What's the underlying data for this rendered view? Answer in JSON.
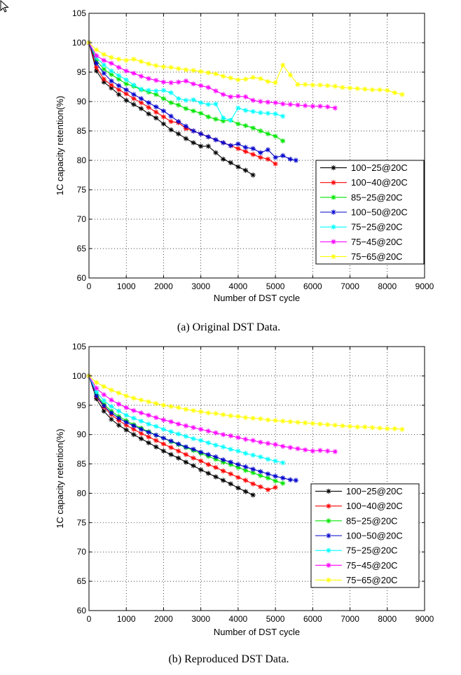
{
  "chart_data": [
    {
      "type": "line",
      "caption": "(a) Original DST Data.",
      "xlabel": "Number of DST cycle",
      "ylabel": "1C capacity retention(%)",
      "xlim": [
        0,
        9000
      ],
      "ylim": [
        60,
        105
      ],
      "xticks": [
        0,
        1000,
        2000,
        3000,
        4000,
        5000,
        6000,
        7000,
        8000,
        9000
      ],
      "yticks": [
        60,
        65,
        70,
        75,
        80,
        85,
        90,
        95,
        100,
        105
      ],
      "grid": true,
      "legend_position": "right-middle",
      "series": [
        {
          "name": "100−25@20C",
          "color": "#000000",
          "x": [
            0,
            200,
            400,
            600,
            800,
            1000,
            1200,
            1400,
            1600,
            1800,
            2000,
            2200,
            2400,
            2600,
            2800,
            3000,
            3200,
            3400,
            3600,
            3800,
            4000,
            4200,
            4400
          ],
          "y": [
            100,
            95.2,
            93.3,
            92.3,
            91.2,
            90.2,
            89.5,
            88.8,
            87.9,
            87.2,
            86.2,
            85.2,
            84.5,
            83.7,
            83.0,
            82.4,
            82.4,
            81.3,
            80.2,
            79.6,
            78.9,
            78.3,
            77.5
          ]
        },
        {
          "name": "100−40@20C",
          "color": "#ff0000",
          "x": [
            0,
            200,
            400,
            600,
            800,
            1000,
            1200,
            1400,
            1600,
            1800,
            2000,
            2200,
            2400,
            2600,
            2800,
            3000,
            3200,
            3400,
            3600,
            3800,
            4000,
            4200,
            4400,
            4600,
            4800,
            5000
          ],
          "y": [
            100,
            95.8,
            93.8,
            92.8,
            92.0,
            91.3,
            90.5,
            89.8,
            89.0,
            88.2,
            87.4,
            86.6,
            86.4,
            85.4,
            85.0,
            84.5,
            84.0,
            83.5,
            83.0,
            82.5,
            82.0,
            81.5,
            81.0,
            80.5,
            80.2,
            79.4
          ]
        },
        {
          "name": "85−25@20C",
          "color": "#00e600",
          "x": [
            0,
            200,
            400,
            600,
            800,
            1000,
            1200,
            1400,
            1600,
            1800,
            2000,
            2200,
            2400,
            2600,
            2800,
            3000,
            3200,
            3400,
            3600,
            3800,
            4000,
            4200,
            4400,
            4600,
            4800,
            5000,
            5200
          ],
          "y": [
            100,
            97.0,
            95.5,
            94.6,
            93.8,
            93.0,
            92.6,
            92.0,
            91.6,
            91.2,
            90.5,
            89.8,
            89.4,
            88.8,
            88.4,
            88.0,
            87.4,
            87.0,
            86.7,
            86.8,
            86.2,
            85.9,
            85.5,
            85.0,
            84.5,
            84.1,
            83.3
          ]
        },
        {
          "name": "100−50@20C",
          "color": "#0000cc",
          "x": [
            0,
            200,
            400,
            600,
            800,
            1000,
            1200,
            1400,
            1600,
            1800,
            2000,
            2200,
            2400,
            2600,
            2800,
            3000,
            3200,
            3400,
            3600,
            3800,
            4000,
            4200,
            4400,
            4600,
            4800,
            5000,
            5200,
            5400,
            5550
          ],
          "y": [
            100,
            96.5,
            94.8,
            93.5,
            92.7,
            92.0,
            91.2,
            90.5,
            89.8,
            89.1,
            88.4,
            87.5,
            86.6,
            85.8,
            85.0,
            84.5,
            84.0,
            83.5,
            83.0,
            82.5,
            82.8,
            82.2,
            82.0,
            81.3,
            81.8,
            80.5,
            80.8,
            80.2,
            80.0
          ]
        },
        {
          "name": "75−25@20C",
          "color": "#00ffff",
          "x": [
            0,
            200,
            400,
            600,
            800,
            1000,
            1200,
            1400,
            1600,
            1800,
            2000,
            2200,
            2400,
            2600,
            2800,
            3000,
            3200,
            3400,
            3600,
            3800,
            4000,
            4200,
            4400,
            4600,
            4800,
            5000,
            5200
          ],
          "y": [
            100,
            97.5,
            96.2,
            95.2,
            94.4,
            93.7,
            92.8,
            92.1,
            91.9,
            91.8,
            91.9,
            91.5,
            90.5,
            90.2,
            90.3,
            89.8,
            89.5,
            89.6,
            87.2,
            86.8,
            88.9,
            88.5,
            88.3,
            88.1,
            88.0,
            87.9,
            87.5
          ]
        },
        {
          "name": "75−45@20C",
          "color": "#ff00ff",
          "x": [
            0,
            200,
            400,
            600,
            800,
            1000,
            1200,
            1400,
            1600,
            1800,
            2000,
            2200,
            2400,
            2600,
            2800,
            3000,
            3200,
            3400,
            3600,
            3800,
            4000,
            4200,
            4400,
            4600,
            4800,
            5000,
            5200,
            5400,
            5600,
            5800,
            6000,
            6200,
            6400,
            6600
          ],
          "y": [
            100,
            97.8,
            97.0,
            96.5,
            95.8,
            95.2,
            94.8,
            94.3,
            93.9,
            93.6,
            93.3,
            93.2,
            93.3,
            93.5,
            93.0,
            92.7,
            92.4,
            91.8,
            91.2,
            90.8,
            90.9,
            90.8,
            90.2,
            90.0,
            89.9,
            89.8,
            89.6,
            89.5,
            89.4,
            89.3,
            89.2,
            89.2,
            89.1,
            88.9
          ]
        },
        {
          "name": "75−65@20C",
          "color": "#ffff00",
          "x": [
            0,
            200,
            400,
            600,
            800,
            1000,
            1200,
            1400,
            1600,
            1800,
            2000,
            2200,
            2400,
            2600,
            2800,
            3000,
            3200,
            3400,
            3600,
            3800,
            4000,
            4200,
            4400,
            4600,
            4800,
            5000,
            5200,
            5400,
            5600,
            5800,
            6000,
            6200,
            6400,
            6600,
            6800,
            7000,
            7200,
            7400,
            7600,
            7800,
            8000,
            8200,
            8400
          ],
          "y": [
            100,
            98.8,
            98.0,
            97.5,
            97.2,
            97.0,
            97.2,
            96.8,
            96.4,
            96.1,
            95.9,
            95.8,
            95.6,
            95.4,
            95.3,
            95.1,
            94.9,
            94.7,
            94.3,
            94.0,
            93.7,
            93.8,
            94.1,
            93.9,
            93.4,
            93.2,
            96.2,
            94.5,
            92.9,
            92.9,
            92.8,
            92.8,
            92.7,
            92.6,
            92.4,
            92.3,
            92.2,
            92.1,
            92.0,
            92.0,
            91.9,
            91.5,
            91.2
          ]
        }
      ]
    },
    {
      "type": "line",
      "caption": "(b) Reproduced DST Data.",
      "xlabel": "Number of DST cycle",
      "ylabel": "1C capacity retention(%)",
      "xlim": [
        0,
        9000
      ],
      "ylim": [
        60,
        105
      ],
      "xticks": [
        0,
        1000,
        2000,
        3000,
        4000,
        5000,
        6000,
        7000,
        8000,
        9000
      ],
      "yticks": [
        60,
        65,
        70,
        75,
        80,
        85,
        90,
        95,
        100,
        105
      ],
      "grid": true,
      "legend_position": "bottom-right",
      "series": [
        {
          "name": "100−25@20C",
          "color": "#000000",
          "x": [
            0,
            200,
            400,
            600,
            800,
            1000,
            1200,
            1400,
            1600,
            1800,
            2000,
            2200,
            2400,
            2600,
            2800,
            3000,
            3200,
            3400,
            3600,
            3800,
            4000,
            4200,
            4400
          ],
          "y": [
            100,
            96.1,
            94.0,
            92.6,
            91.6,
            90.8,
            90.0,
            89.3,
            88.6,
            87.9,
            87.2,
            86.6,
            86.0,
            85.3,
            84.7,
            84.0,
            83.4,
            82.8,
            82.2,
            81.6,
            80.9,
            80.3,
            79.7
          ]
        },
        {
          "name": "100−40@20C",
          "color": "#ff0000",
          "x": [
            0,
            200,
            400,
            600,
            800,
            1000,
            1200,
            1400,
            1600,
            1800,
            2000,
            2200,
            2400,
            2600,
            2800,
            3000,
            3200,
            3400,
            3600,
            3800,
            4000,
            4200,
            4400,
            4600,
            4800,
            5000
          ],
          "y": [
            100,
            96.5,
            94.7,
            93.4,
            92.4,
            91.6,
            90.9,
            90.2,
            89.6,
            89.0,
            88.4,
            87.8,
            87.2,
            86.6,
            86.0,
            85.5,
            84.9,
            84.4,
            83.8,
            83.3,
            82.7,
            82.2,
            81.6,
            81.1,
            80.6,
            81.0
          ]
        },
        {
          "name": "85−25@20C",
          "color": "#00e600",
          "x": [
            0,
            200,
            400,
            600,
            800,
            1000,
            1200,
            1400,
            1600,
            1800,
            2000,
            2200,
            2400,
            2600,
            2800,
            3000,
            3200,
            3400,
            3600,
            3800,
            4000,
            4200,
            4400,
            4600,
            4800,
            5000,
            5200
          ],
          "y": [
            100,
            96.9,
            95.2,
            94.0,
            93.1,
            92.4,
            91.7,
            91.1,
            90.5,
            89.9,
            89.4,
            88.8,
            88.3,
            87.8,
            87.3,
            86.8,
            86.3,
            85.8,
            85.3,
            84.9,
            84.4,
            83.9,
            83.5,
            83.0,
            82.6,
            82.1,
            81.7
          ]
        },
        {
          "name": "100−50@20C",
          "color": "#0000cc",
          "x": [
            0,
            200,
            400,
            600,
            800,
            1000,
            1200,
            1400,
            1600,
            1800,
            2000,
            2200,
            2400,
            2600,
            2800,
            3000,
            3200,
            3400,
            3600,
            3800,
            4000,
            4200,
            4400,
            4600,
            4800,
            5000,
            5200,
            5400,
            5550
          ],
          "y": [
            100,
            96.6,
            94.9,
            93.7,
            92.8,
            92.1,
            91.5,
            90.9,
            90.4,
            89.9,
            89.4,
            88.9,
            88.4,
            87.9,
            87.5,
            87.0,
            86.6,
            86.2,
            85.7,
            85.3,
            84.9,
            84.5,
            84.1,
            83.7,
            83.3,
            82.9,
            82.6,
            82.3,
            82.2
          ]
        },
        {
          "name": "75−25@20C",
          "color": "#00ffff",
          "x": [
            0,
            200,
            400,
            600,
            800,
            1000,
            1200,
            1400,
            1600,
            1800,
            2000,
            2200,
            2400,
            2600,
            2800,
            3000,
            3200,
            3400,
            3600,
            3800,
            4000,
            4200,
            4400,
            4600,
            4800,
            5000,
            5200
          ],
          "y": [
            100,
            97.3,
            95.8,
            94.8,
            94.0,
            93.3,
            92.8,
            92.3,
            91.8,
            91.4,
            90.9,
            90.5,
            90.1,
            89.7,
            89.3,
            89.0,
            88.6,
            88.2,
            87.9,
            87.5,
            87.2,
            86.8,
            86.5,
            86.2,
            85.8,
            85.5,
            85.2
          ]
        },
        {
          "name": "75−45@20C",
          "color": "#ff00ff",
          "x": [
            0,
            200,
            400,
            600,
            800,
            1000,
            1200,
            1400,
            1600,
            1800,
            2000,
            2200,
            2400,
            2600,
            2800,
            3000,
            3200,
            3400,
            3600,
            3800,
            4000,
            4200,
            4400,
            4600,
            4800,
            5000,
            5200,
            5400,
            5600,
            5800,
            6000,
            6200,
            6400,
            6600
          ],
          "y": [
            100,
            97.9,
            96.8,
            95.9,
            95.2,
            94.6,
            94.1,
            93.7,
            93.3,
            92.9,
            92.5,
            92.2,
            91.8,
            91.5,
            91.2,
            90.9,
            90.6,
            90.3,
            90.0,
            89.8,
            89.5,
            89.2,
            89.0,
            88.7,
            88.5,
            88.3,
            88.0,
            87.8,
            87.6,
            87.4,
            87.2,
            87.3,
            87.2,
            87.1
          ]
        },
        {
          "name": "75−65@20C",
          "color": "#ffff00",
          "x": [
            0,
            200,
            400,
            600,
            800,
            1000,
            1200,
            1400,
            1600,
            1800,
            2000,
            2200,
            2400,
            2600,
            2800,
            3000,
            3200,
            3400,
            3600,
            3800,
            4000,
            4200,
            4400,
            4600,
            4800,
            5000,
            5200,
            5400,
            5600,
            5800,
            6000,
            6200,
            6400,
            6600,
            6800,
            7000,
            7200,
            7400,
            7600,
            7800,
            8000,
            8200,
            8400
          ],
          "y": [
            100,
            98.9,
            98.2,
            97.6,
            97.1,
            96.6,
            96.2,
            95.9,
            95.6,
            95.3,
            95.0,
            94.8,
            94.6,
            94.3,
            94.1,
            93.9,
            93.7,
            93.6,
            93.4,
            93.2,
            93.1,
            92.9,
            92.8,
            92.7,
            92.5,
            92.4,
            92.3,
            92.2,
            92.1,
            92.0,
            91.9,
            91.8,
            91.7,
            91.6,
            91.5,
            91.4,
            91.3,
            91.3,
            91.2,
            91.1,
            91.0,
            91.0,
            90.9
          ]
        }
      ]
    }
  ]
}
